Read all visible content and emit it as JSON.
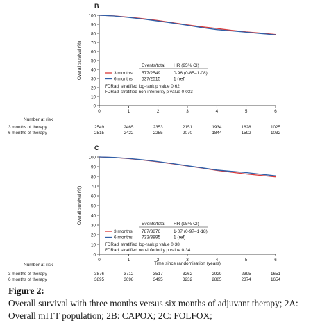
{
  "caption": {
    "title": "Figure 2:",
    "text": "Overall survival with three months versus six months of adjuvant therapy; 2A: Overall mITT population; 2B: CAPOX; 2C: FOLFOX;"
  },
  "colors": {
    "three_months": "#d93a3a",
    "six_months": "#2f5fa8",
    "axis": "#1a1a1a"
  },
  "chart_data": [
    {
      "panel": "B",
      "type": "line",
      "ylabel": "Overall survival (%)",
      "xlabel": "",
      "xlim": [
        0,
        6
      ],
      "ylim": [
        0,
        100
      ],
      "xticks": [
        0,
        1,
        2,
        3,
        4,
        5,
        6
      ],
      "yticks": [
        0,
        10,
        20,
        30,
        40,
        50,
        60,
        70,
        80,
        90,
        100
      ],
      "series": [
        {
          "name": "3 months",
          "color": "#d93a3a",
          "x": [
            0,
            0.5,
            1,
            1.5,
            2,
            2.5,
            3,
            3.5,
            4,
            4.5,
            5,
            5.5,
            6
          ],
          "y": [
            100,
            99.3,
            98,
            96.2,
            94.2,
            91.8,
            89.4,
            87.2,
            85.4,
            83.3,
            81.6,
            80.3,
            78.8
          ]
        },
        {
          "name": "6 months",
          "color": "#2f5fa8",
          "x": [
            0,
            0.5,
            1,
            1.5,
            2,
            2.5,
            3,
            3.5,
            4,
            4.5,
            5,
            5.5,
            6
          ],
          "y": [
            100,
            99.2,
            97.6,
            95.8,
            93.6,
            91.4,
            88.9,
            86.3,
            84.1,
            82.7,
            81.2,
            79.8,
            78.3
          ]
        }
      ],
      "legend_header": [
        "Events/total",
        "HR (95% CI)"
      ],
      "legend_rows": [
        {
          "label": "3 months",
          "events": "577/2549",
          "hr": "0·96 (0·85–1·08)"
        },
        {
          "label": "6 months",
          "events": "537/2515",
          "hr": "1 (ref)"
        }
      ],
      "annotations": [
        "FDRadj stratified log-rank p value 0·62",
        "FDRadj stratified non-inferiority p value 0·033"
      ],
      "risk_title": "Number at risk",
      "risk_rows": [
        {
          "label": "3 months of therapy",
          "values": [
            "2549",
            "2465",
            "2353",
            "2151",
            "1934",
            "1628",
            "1025"
          ]
        },
        {
          "label": "6 months of therapy",
          "values": [
            "2515",
            "2422",
            "2255",
            "2070",
            "1844",
            "1592",
            "1032"
          ]
        }
      ]
    },
    {
      "panel": "C",
      "type": "line",
      "ylabel": "Overall survival (%)",
      "xlabel": "Time since randomisation (years)",
      "xlim": [
        0,
        6
      ],
      "ylim": [
        0,
        100
      ],
      "xticks": [
        0,
        1,
        2,
        3,
        4,
        5,
        6
      ],
      "yticks": [
        0,
        10,
        20,
        30,
        40,
        50,
        60,
        70,
        80,
        90,
        100
      ],
      "series": [
        {
          "name": "3 months",
          "color": "#d93a3a",
          "x": [
            0,
            0.5,
            1,
            1.5,
            2,
            2.5,
            3,
            3.5,
            4,
            4.5,
            5,
            5.5,
            6
          ],
          "y": [
            100,
            99.4,
            98.3,
            96.8,
            95,
            93,
            90.7,
            88.6,
            86.2,
            84.3,
            82.5,
            81,
            79.5
          ]
        },
        {
          "name": "6 months",
          "color": "#2f5fa8",
          "x": [
            0,
            0.5,
            1,
            1.5,
            2,
            2.5,
            3,
            3.5,
            4,
            4.5,
            5,
            5.5,
            6
          ],
          "y": [
            100,
            99.5,
            98.5,
            97,
            95.3,
            93.2,
            90.9,
            88.8,
            86.6,
            85.2,
            83.9,
            82.2,
            80.6
          ]
        }
      ],
      "legend_header": [
        "Events/total",
        "HR (95% CI)"
      ],
      "legend_rows": [
        {
          "label": "3 months",
          "events": "787/3876",
          "hr": "1·07 (0·97–1·18)"
        },
        {
          "label": "6 months",
          "events": "733/3895",
          "hr": "1 (ref)"
        }
      ],
      "annotations": [
        "FDRadj stratified log-rank p value 0·38",
        "FDRadj stratified non-inferiority p value 0·34"
      ],
      "risk_title": "Number at risk",
      "risk_rows": [
        {
          "label": "3 months of therapy",
          "values": [
            "3876",
            "3712",
            "3517",
            "3262",
            "2929",
            "2395",
            "1651"
          ]
        },
        {
          "label": "6 months of therapy",
          "values": [
            "3895",
            "3698",
            "3495",
            "3232",
            "2885",
            "2374",
            "1654"
          ]
        }
      ]
    }
  ]
}
